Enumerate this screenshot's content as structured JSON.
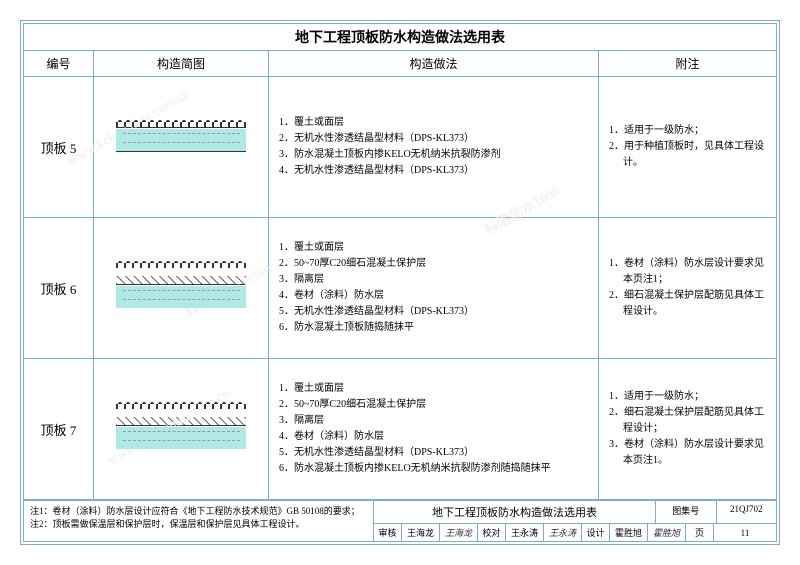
{
  "title": "地下工程顶板防水构造做法选用表",
  "headers": {
    "col1": "编号",
    "col2": "构造简图",
    "col3": "构造做法",
    "col4": "附注"
  },
  "rows": [
    {
      "id": "顶板 5",
      "method": [
        "1．覆土或面层",
        "2．无机水性渗透结晶型材料（DPS-KL373）",
        "3．防水混凝土顶板内掺KELO无机纳米抗裂防渗剂",
        "4．无机水性渗透结晶型材料（DPS-KL373）"
      ],
      "note": [
        "1．适用于一级防水；",
        "2．用于种植顶板时，见具体工程设计。"
      ]
    },
    {
      "id": "顶板 6",
      "method": [
        "1．覆土或面层",
        "2．50~70厚C20细石混凝土保护层",
        "3．隔离层",
        "4．卷材（涂料）防水层",
        "5．无机水性渗透结晶型材料（DPS-KL373）",
        "6．防水混凝土顶板随捣随抹平"
      ],
      "note": [
        "1．卷材（涂料）防水层设计要求见本页注1；",
        "2．细石混凝土保护层配筋见具体工程设计。"
      ]
    },
    {
      "id": "顶板 7",
      "method": [
        "1．覆土或面层",
        "2．50~70厚C20细石混凝土保护层",
        "3．隔离层",
        "4．卷材（涂料）防水层",
        "5．无机水性渗透结晶型材料（DPS-KL373）",
        "6．防水混凝土顶板内掺KELO无机纳米抗裂防渗剂随捣随抹平"
      ],
      "note": [
        "1．适用于一级防水；",
        "2．细石混凝土保护层配筋见具体工程设计；",
        "3．卷材（涂料）防水层设计要求见本页注1。"
      ]
    }
  ],
  "footer_notes": [
    "注1：卷材（涂料）防水层设计应符合《地下工程防水技术规范》GB 50108的要求；",
    "注2：顶板需做保温层和保护层时，保温层和保护层见具体工程设计。"
  ],
  "footer_title": "地下工程顶板防水构造做法选用表",
  "code_label": "图集号",
  "code_value": "21QJ702",
  "page_label": "页",
  "page_num": "11",
  "sigs": [
    {
      "lab": "审核",
      "name": "王海龙",
      "hw": "王海龙"
    },
    {
      "lab": "校对",
      "name": "王永涛",
      "hw": "王永涛"
    },
    {
      "lab": "设计",
      "name": "霍胜旭",
      "hw": "霍胜旭"
    }
  ],
  "colors": {
    "border": "#79aed2",
    "cyan": "#b0e8e8"
  }
}
